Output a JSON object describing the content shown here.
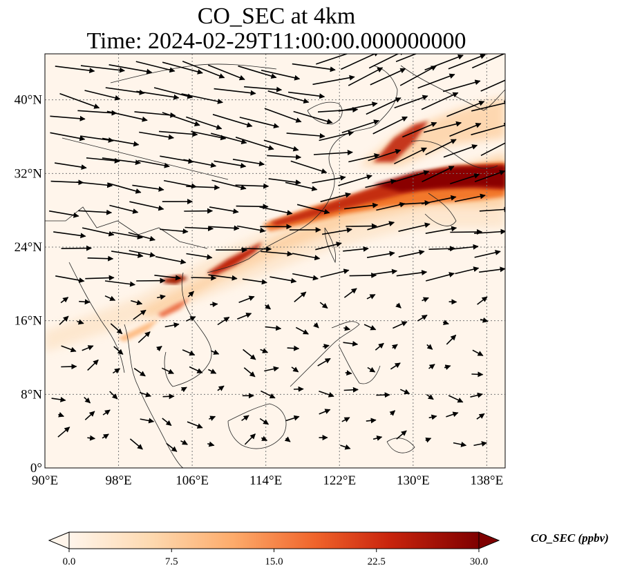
{
  "title": {
    "line1": "CO_SEC at 4km",
    "line2": "Time: 2024-02-29T11:00:00.000000000"
  },
  "map": {
    "lon_range": [
      90,
      140
    ],
    "lat_range": [
      0,
      45
    ],
    "lon_ticks": [
      90,
      98,
      106,
      114,
      122,
      130,
      138
    ],
    "lat_ticks": [
      0,
      8,
      16,
      24,
      32,
      40
    ],
    "lon_tick_labels": [
      "90°E",
      "98°E",
      "106°E",
      "114°E",
      "122°E",
      "130°E",
      "138°E"
    ],
    "lat_tick_labels": [
      "0°",
      "8°N",
      "16°N",
      "24°N",
      "32°N",
      "40°N"
    ],
    "gridlines": true
  },
  "colorbar": {
    "label": "CO_SEC (ppbv)",
    "min": 0,
    "max": 30,
    "ticks": [
      0,
      7.5,
      15,
      22.5,
      30
    ],
    "tick_labels": [
      "0.0",
      "7.5",
      "15.0",
      "22.5",
      "30.0"
    ],
    "colormap": [
      "#fff5eb",
      "#fdd0a2",
      "#fdae6b",
      "#f16913",
      "#d94801",
      "#a63603",
      "#7f0000"
    ],
    "extend": "both"
  }
}
